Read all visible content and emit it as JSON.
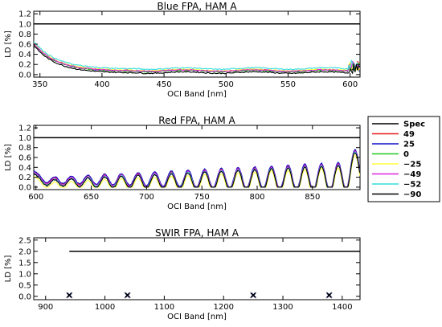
{
  "figure": {
    "legend": {
      "placement": "right",
      "entries": [
        {
          "label": "Spec",
          "color": "#000000"
        },
        {
          "label": "49",
          "color": "#e8191c"
        },
        {
          "label": "25",
          "color": "#1010cc"
        },
        {
          "label": "0",
          "color": "#22cc22"
        },
        {
          "label": "−25",
          "color": "#ffff40"
        },
        {
          "label": "−49",
          "color": "#dd22dd"
        },
        {
          "label": "−52",
          "color": "#33dddd"
        },
        {
          "label": "−90",
          "color": "#000000"
        }
      ]
    }
  },
  "chart_data": [
    {
      "type": "line",
      "title": "Blue FPA, HAM A",
      "xlabel": "OCI Band [nm]",
      "ylabel": "LD [%]",
      "xlim": [
        345,
        608
      ],
      "ylim": [
        -0.05,
        1.25
      ],
      "xticks": [
        350,
        400,
        450,
        500,
        550,
        600
      ],
      "yticks": [
        0.0,
        0.2,
        0.4,
        0.6,
        0.8,
        1.0,
        1.2
      ],
      "spec": {
        "x": [
          345,
          608
        ],
        "y": [
          1.0,
          1.0
        ]
      },
      "generator": "blue",
      "series": [
        {
          "name": "49",
          "offset": 0.015
        },
        {
          "name": "25",
          "offset": 0.005
        },
        {
          "name": "0",
          "offset": 0.0
        },
        {
          "name": "−25",
          "offset": 0.02
        },
        {
          "name": "−49",
          "offset": 0.01
        },
        {
          "name": "−52",
          "offset": 0.05
        },
        {
          "name": "−90",
          "offset": -0.03
        }
      ]
    },
    {
      "type": "line",
      "title": "Red FPA, HAM A",
      "xlabel": "OCI Band [nm]",
      "ylabel": "LD [%]",
      "xlim": [
        598,
        893
      ],
      "ylim": [
        -0.05,
        1.25
      ],
      "xticks": [
        600,
        650,
        700,
        750,
        800,
        850
      ],
      "yticks": [
        0.0,
        0.2,
        0.4,
        0.6,
        0.8,
        1.0,
        1.2
      ],
      "spec": {
        "x": [
          598,
          893
        ],
        "y": [
          1.0,
          1.0
        ]
      },
      "generator": "red",
      "series": [
        {
          "name": "49",
          "offset": 0.03
        },
        {
          "name": "25",
          "offset": 0.04
        },
        {
          "name": "0",
          "offset": 0.0
        },
        {
          "name": "−25",
          "offset": -0.07
        },
        {
          "name": "−49",
          "offset": 0.01
        },
        {
          "name": "−52",
          "offset": -0.01
        },
        {
          "name": "−90",
          "offset": -0.02
        }
      ]
    },
    {
      "type": "scatter",
      "title": "SWIR FPA, HAM A",
      "xlabel": "OCI Band [nm]",
      "ylabel": "LD [%]",
      "xlim": [
        880,
        1430
      ],
      "ylim": [
        -0.15,
        2.6
      ],
      "xticks": [
        900,
        1000,
        1100,
        1200,
        1300,
        1400
      ],
      "yticks": [
        0.0,
        0.5,
        1.0,
        1.5,
        2.0,
        2.5
      ],
      "spec": {
        "x": [
          940,
          1430
        ],
        "y": [
          2.0,
          2.0
        ]
      },
      "points": {
        "x": [
          940,
          1038,
          1250,
          1378
        ],
        "y": [
          0.05,
          0.05,
          0.05,
          0.05
        ]
      }
    }
  ]
}
